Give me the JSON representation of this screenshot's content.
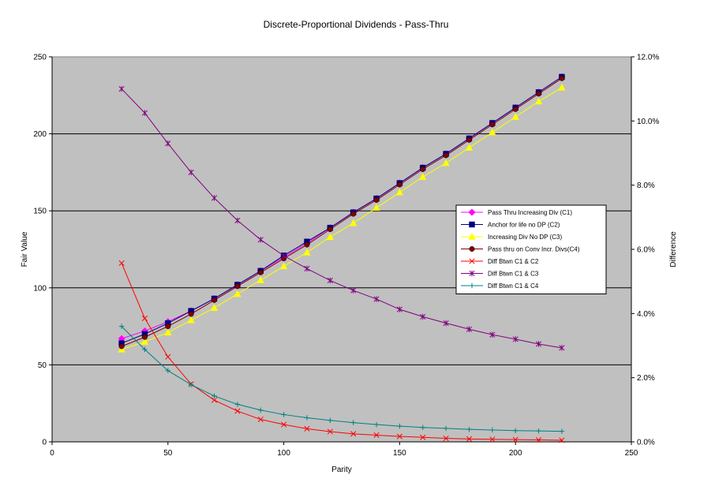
{
  "chart_data": {
    "type": "line",
    "title": "Discrete-Proportional Dividends - Pass-Thru",
    "xlabel": "Parity",
    "ylabel": "Fair Value",
    "y2label": "Difference",
    "xlim": [
      0,
      250
    ],
    "ylim": [
      0,
      250
    ],
    "y2lim": [
      0,
      0.12
    ],
    "xticks": [
      "0",
      "50",
      "100",
      "150",
      "200",
      "250"
    ],
    "yticks": [
      "0",
      "50",
      "100",
      "150",
      "200",
      "250"
    ],
    "y2ticks": [
      "0.0%",
      "2.0%",
      "4.0%",
      "6.0%",
      "8.0%",
      "10.0%",
      "12.0%"
    ],
    "grid": "horizontal",
    "legend_position": "right",
    "x": [
      30,
      40,
      50,
      60,
      70,
      80,
      90,
      100,
      110,
      120,
      130,
      140,
      150,
      160,
      170,
      180,
      190,
      200,
      210,
      220
    ],
    "series": [
      {
        "name": "Pass Thru Increasing Div (C1)",
        "axis": "left",
        "color": "#FF00FF",
        "marker": "diamond",
        "values": [
          67,
          72,
          78,
          85,
          93,
          102,
          111,
          120,
          129,
          139,
          149,
          158,
          168,
          178,
          187,
          197,
          207,
          217,
          227,
          237
        ]
      },
      {
        "name": "Anchor for life no DP (C2)",
        "axis": "left",
        "color": "#000080",
        "marker": "square",
        "values": [
          64,
          70,
          77,
          85,
          93,
          102,
          111,
          121,
          130,
          139,
          149,
          158,
          168,
          178,
          187,
          197,
          207,
          217,
          227,
          237
        ]
      },
      {
        "name": "Increasing Div No DP (C3)",
        "axis": "left",
        "color": "#FFFF00",
        "marker": "triangle",
        "values": [
          60,
          65,
          71,
          79,
          87,
          96,
          105,
          114,
          123,
          133,
          142,
          152,
          162,
          172,
          181,
          191,
          201,
          211,
          221,
          230
        ]
      },
      {
        "name": "Pass thru on Conv Incr. Divs(C4)",
        "axis": "left",
        "color": "#800000",
        "marker": "circle",
        "values": [
          62,
          68,
          75,
          83,
          92,
          101,
          110,
          119,
          128,
          138,
          148,
          157,
          167,
          177,
          186,
          196,
          206,
          216,
          226,
          236
        ]
      },
      {
        "name": "Diff Btwn C1 & C2",
        "axis": "right",
        "color": "#FF0000",
        "marker": "x",
        "values": [
          0.0557,
          0.0385,
          0.0265,
          0.018,
          0.013,
          0.0096,
          0.007,
          0.0054,
          0.0041,
          0.0032,
          0.0025,
          0.0021,
          0.0017,
          0.0014,
          0.0011,
          0.0009,
          0.0008,
          0.0007,
          0.0006,
          0.0005
        ]
      },
      {
        "name": "Diff Btwn C1 & C3",
        "axis": "right",
        "color": "#800080",
        "marker": "star",
        "values": [
          0.11,
          0.1025,
          0.093,
          0.084,
          0.076,
          0.069,
          0.063,
          0.058,
          0.054,
          0.0503,
          0.0472,
          0.0445,
          0.0413,
          0.039,
          0.037,
          0.0351,
          0.0334,
          0.032,
          0.0305,
          0.0293
        ]
      },
      {
        "name": "Diff Btwn C1 & C4",
        "axis": "right",
        "color": "#008080",
        "marker": "plus",
        "values": [
          0.036,
          0.0288,
          0.0222,
          0.0178,
          0.0143,
          0.0117,
          0.0099,
          0.0085,
          0.0075,
          0.0067,
          0.006,
          0.0054,
          0.0049,
          0.0045,
          0.0042,
          0.0039,
          0.0037,
          0.0035,
          0.0034,
          0.0033
        ]
      }
    ]
  }
}
